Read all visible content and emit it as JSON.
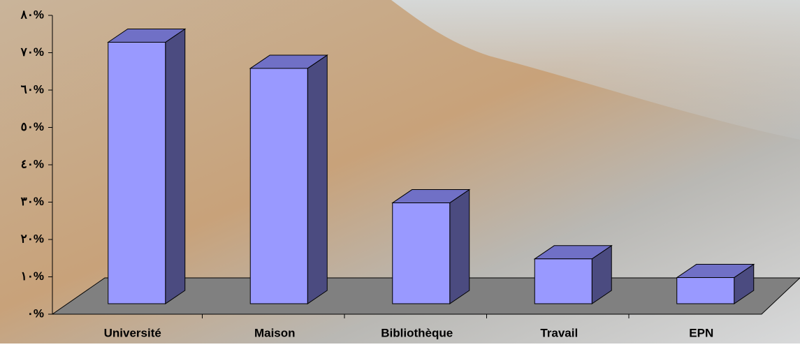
{
  "chart_data": {
    "type": "bar3d",
    "categories": [
      "Université",
      "Maison",
      "Bibliothèque",
      "Travail",
      "EPN"
    ],
    "values": [
      70,
      63,
      27,
      12,
      7
    ],
    "color": "#9999ff",
    "ylim": [
      0,
      80
    ],
    "yticks": [
      {
        "value": 0,
        "label": "٠%"
      },
      {
        "value": 10,
        "label": "١٠%"
      },
      {
        "value": 20,
        "label": "٢٠%"
      },
      {
        "value": 30,
        "label": "٣٠%"
      },
      {
        "value": 40,
        "label": "٤٠%"
      },
      {
        "value": 50,
        "label": "٥٠%"
      },
      {
        "value": 60,
        "label": "٦٠%"
      },
      {
        "value": 70,
        "label": "٧٠%"
      },
      {
        "value": 80,
        "label": "٨٠%"
      }
    ],
    "grid": false
  }
}
